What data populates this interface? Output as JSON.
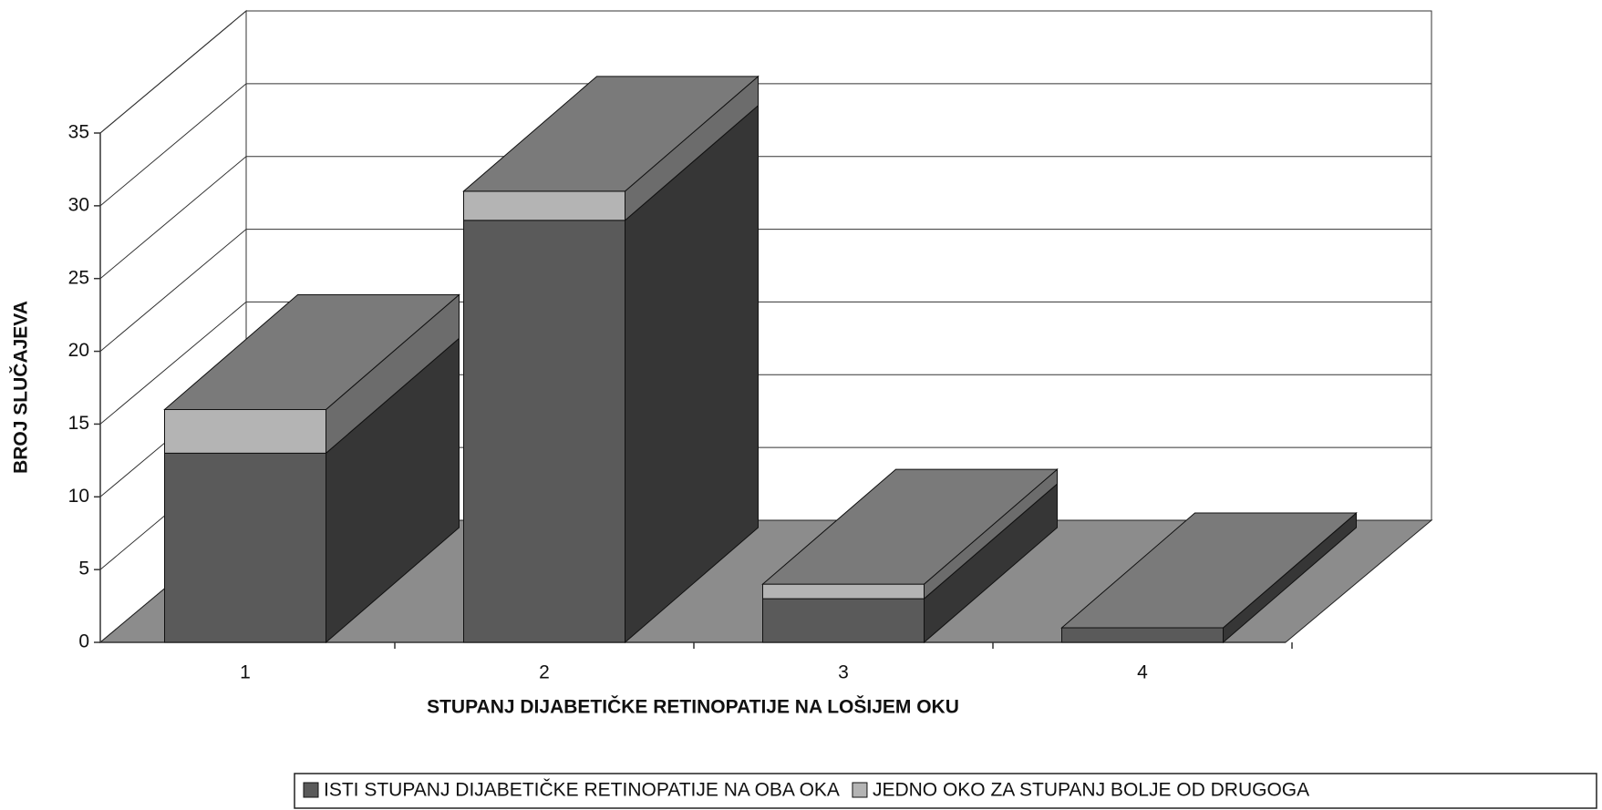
{
  "chart_data": {
    "type": "bar",
    "stacked": true,
    "x_label": "STUPANJ DIJABETIČKE RETINOPATIJE NA LOŠIJEM OKU",
    "y_label": "BROJ SLUČAJEVA",
    "categories": [
      "1",
      "2",
      "3",
      "4"
    ],
    "series": [
      {
        "name": "ISTI STUPANJ DIJABETIČKE RETINOPATIJE NA OBA OKA",
        "color": "#5a5a5a",
        "values": [
          13,
          29,
          3,
          1
        ]
      },
      {
        "name": "JEDNO OKO ZA STUPANJ BOLJE OD DRUGOGA",
        "color": "#b4b4b4",
        "values": [
          3,
          2,
          1,
          0
        ]
      }
    ],
    "ylim": [
      0,
      35
    ],
    "yticks": [
      0,
      5,
      10,
      15,
      20,
      25,
      30,
      35
    ],
    "grid": true
  }
}
